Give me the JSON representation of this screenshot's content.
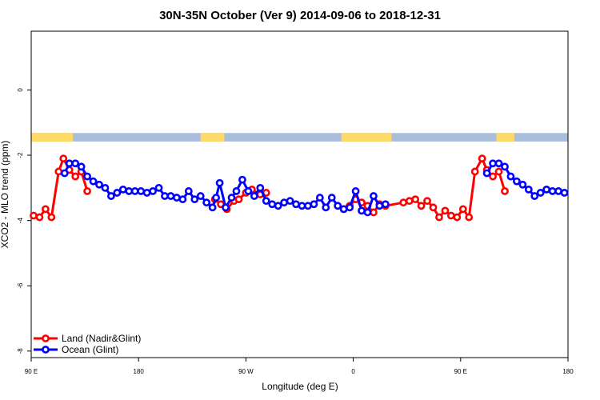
{
  "chart_data": {
    "type": "line",
    "title": "30N-35N October (Ver 9)   2014-09-06 to 2018-12-31",
    "xlabel": "Longitude (deg E)",
    "ylabel": "XCO2 - MLO trend (ppm)",
    "xlim": [
      90,
      540
    ],
    "ylim": [
      -8.2,
      1.8
    ],
    "x_ticks": [
      {
        "value": 90,
        "label": "90 E"
      },
      {
        "value": 180,
        "label": "180"
      },
      {
        "value": 270,
        "label": "90 W"
      },
      {
        "value": 360,
        "label": "0"
      },
      {
        "value": 450,
        "label": "90 E"
      },
      {
        "value": 540,
        "label": "180"
      }
    ],
    "y_ticks": [
      {
        "value": 0,
        "label": "0"
      },
      {
        "value": -2,
        "label": "-2"
      },
      {
        "value": -4,
        "label": "-4"
      },
      {
        "value": -6,
        "label": "-6"
      },
      {
        "value": -8,
        "label": "-8"
      }
    ],
    "grid": false,
    "legend_position": "bottom-left",
    "land_ocean_strip": {
      "y_range": [
        -1.32,
        -1.58
      ],
      "land_color": "#FFD966",
      "ocean_color": "#A8BEDC",
      "land_segments": [
        [
          90,
          120
        ],
        [
          112,
          120
        ],
        [
          119,
          125
        ],
        [
          232,
          252
        ],
        [
          350,
          392
        ],
        [
          480,
          495
        ]
      ]
    },
    "series": [
      {
        "name": "Land (Nadir&Glint)",
        "color": "#FF0000",
        "x": [
          92,
          97,
          102,
          107,
          113,
          117,
          122,
          127,
          132,
          137,
          244,
          249,
          254,
          260,
          264,
          270,
          275,
          282,
          287,
          347,
          352,
          357,
          362,
          367,
          372,
          377,
          382,
          387,
          402,
          407,
          412,
          417,
          422,
          427,
          432,
          437,
          442,
          447,
          452,
          457,
          462,
          468,
          472,
          477,
          482,
          487,
          492,
          497,
          502
        ],
        "values": [
          -3.85,
          -3.9,
          -3.65,
          -3.9,
          -2.5,
          -2.1,
          -2.45,
          -2.65,
          -2.5,
          -3.1,
          -3.35,
          -3.5,
          -3.65,
          -3.4,
          -3.35,
          -3.15,
          -3.05,
          -3.2,
          -3.15,
          -3.55,
          -3.65,
          -3.55,
          -3.35,
          -3.45,
          -3.55,
          -3.75,
          -3.5,
          -3.55,
          -3.45,
          -3.4,
          -3.35,
          -3.55,
          -3.4,
          -3.6,
          -3.9,
          -3.7,
          -3.85,
          -3.9,
          -3.65,
          -3.9,
          -2.5,
          -2.1,
          -2.45,
          -2.65,
          -2.5,
          -3.1,
          null,
          null,
          null
        ]
      },
      {
        "name": "Ocean (Glint)",
        "color": "#0000FF",
        "x": [
          118,
          122,
          127,
          132,
          137,
          142,
          147,
          152,
          157,
          162,
          167,
          172,
          177,
          182,
          187,
          192,
          197,
          202,
          207,
          212,
          217,
          222,
          227,
          232,
          237,
          242,
          245,
          248,
          253,
          258,
          262,
          267,
          272,
          277,
          282,
          287,
          292,
          297,
          302,
          307,
          312,
          317,
          322,
          327,
          332,
          337,
          342,
          347,
          352,
          357,
          362,
          367,
          372,
          377,
          382,
          387,
          472,
          477,
          482,
          487,
          492,
          497,
          502,
          507,
          512,
          517,
          522,
          527,
          532,
          537,
          542
        ],
        "values": [
          -2.55,
          -2.25,
          -2.25,
          -2.35,
          -2.65,
          -2.8,
          -2.9,
          -3.0,
          -3.25,
          -3.15,
          -3.05,
          -3.1,
          -3.1,
          -3.1,
          -3.15,
          -3.1,
          -3.0,
          -3.25,
          -3.25,
          -3.3,
          -3.35,
          -3.1,
          -3.35,
          -3.25,
          -3.45,
          -3.6,
          -3.3,
          -2.85,
          -3.6,
          -3.3,
          -3.1,
          -2.75,
          -3.1,
          -3.25,
          -3.0,
          -3.4,
          -3.5,
          -3.55,
          -3.45,
          -3.4,
          -3.5,
          -3.55,
          -3.55,
          -3.5,
          -3.3,
          -3.6,
          -3.3,
          -3.55,
          -3.65,
          -3.6,
          -3.1,
          -3.7,
          -3.75,
          -3.25,
          -3.55,
          -3.5,
          -2.55,
          -2.25,
          -2.25,
          -2.35,
          -2.65,
          -2.8,
          -2.9,
          -3.05,
          -3.25,
          -3.15,
          -3.05,
          -3.1,
          -3.1,
          -3.15,
          -3.1
        ]
      }
    ]
  }
}
